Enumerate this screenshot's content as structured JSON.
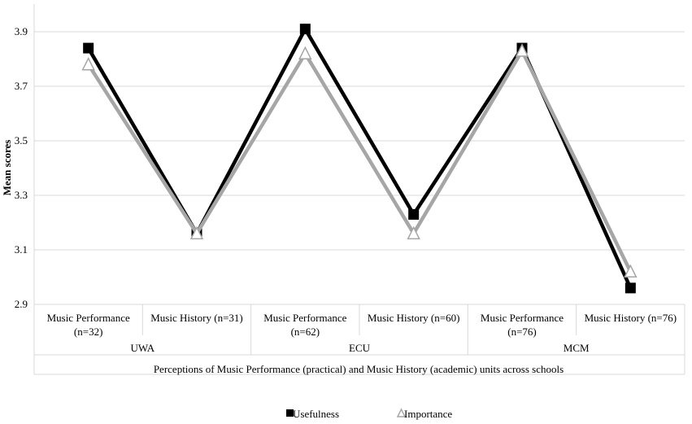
{
  "chart_data": {
    "type": "line",
    "ylabel": "Mean scores",
    "xlabel": "Perceptions of Music Performance (practical) and Music History (academic) units across schools",
    "ylim": [
      2.9,
      3.9
    ],
    "yticks": [
      "2.9",
      "3.1",
      "3.3",
      "3.5",
      "3.7",
      "3.9"
    ],
    "grid": true,
    "legend_position": "bottom",
    "categories": [
      [
        "Music Performance",
        "(n=32)"
      ],
      [
        "Music History (n=31)"
      ],
      [
        "Music Performance",
        "(n=62)"
      ],
      [
        "Music History (n=60)"
      ],
      [
        "Music Performance",
        "(n=76)"
      ],
      [
        "Music History (n=76)"
      ]
    ],
    "groups": [
      "UWA",
      "ECU",
      "MCM"
    ],
    "series": [
      {
        "name": "Usefulness",
        "values": [
          3.84,
          3.16,
          3.91,
          3.23,
          3.84,
          2.96
        ],
        "color": "#000000",
        "marker": "square"
      },
      {
        "name": "Importance",
        "values": [
          3.78,
          3.16,
          3.82,
          3.16,
          3.83,
          3.02
        ],
        "color": "#a6a6a6",
        "marker": "triangle"
      }
    ]
  }
}
